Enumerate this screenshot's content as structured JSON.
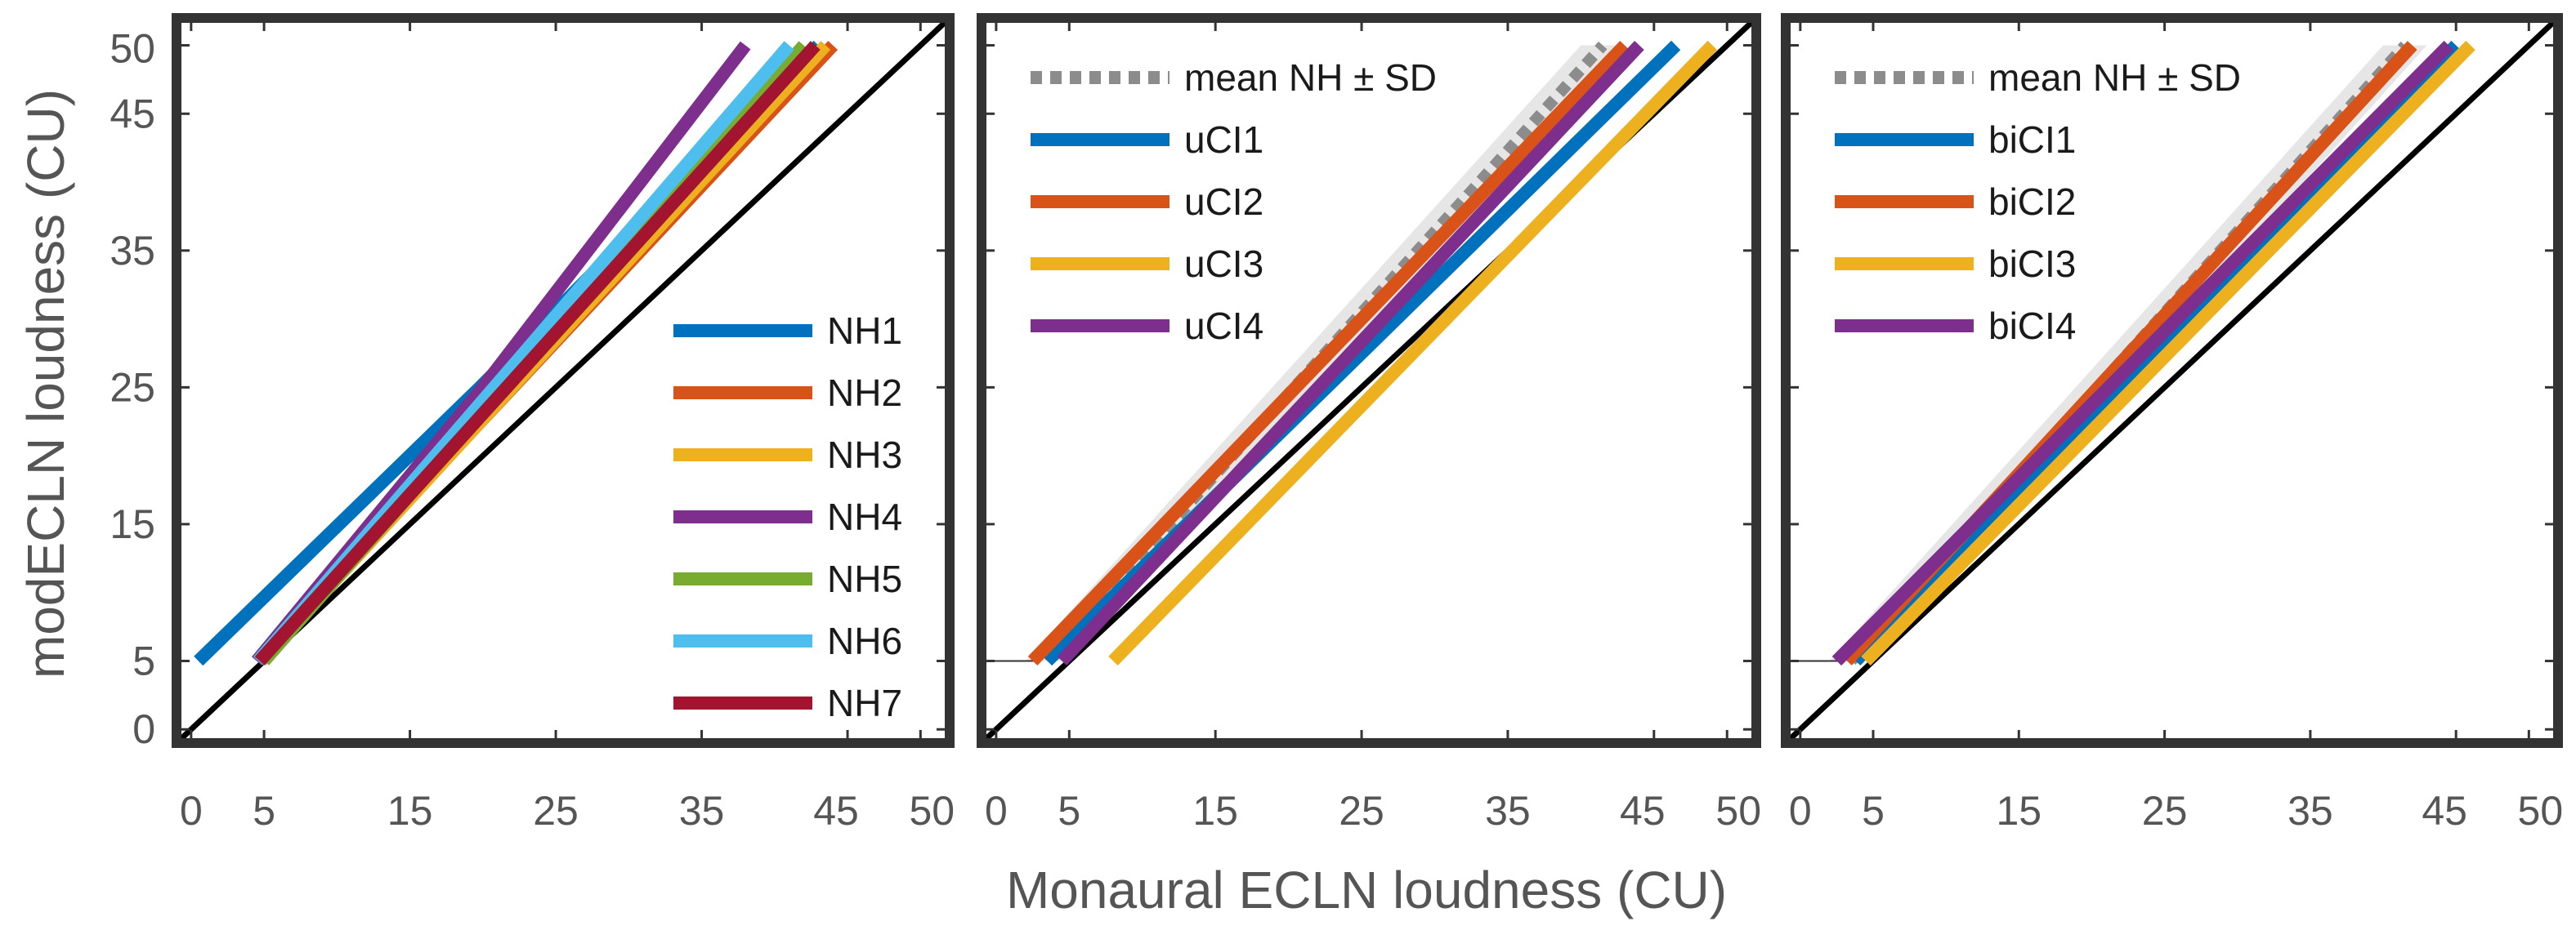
{
  "figure": {
    "xlabel": "Monaural ECLN loudness (CU)",
    "ylabel": "modECLN loudness (CU)"
  },
  "chart_data": [
    {
      "type": "line",
      "panel": "left",
      "xlim": [
        -1,
        52
      ],
      "ylim": [
        -1,
        52
      ],
      "xticks": [
        0,
        5,
        15,
        25,
        35,
        45,
        50
      ],
      "xtick_labels": [
        "0",
        "5",
        "15",
        "25",
        "35",
        "45",
        "50"
      ],
      "yticks": [
        0,
        5,
        15,
        25,
        35,
        45,
        50
      ],
      "ytick_labels": [
        "0",
        "5",
        "15",
        "25",
        "35",
        "45",
        "50"
      ],
      "identity_line": true,
      "legend_position": "lower-right",
      "series": [
        {
          "name": "NH1",
          "color": "#0072BD",
          "x": [
            0.5,
            19.8,
            43
          ],
          "y": [
            5,
            25,
            50
          ]
        },
        {
          "name": "NH2",
          "color": "#D95319",
          "x": [
            4.5,
            44
          ],
          "y": [
            5,
            50
          ]
        },
        {
          "name": "NH3",
          "color": "#EDB120",
          "x": [
            4.8,
            43.5
          ],
          "y": [
            5,
            50
          ]
        },
        {
          "name": "NH4",
          "color": "#7E2F8E",
          "x": [
            4.5,
            20,
            38
          ],
          "y": [
            5,
            25,
            50
          ]
        },
        {
          "name": "NH5",
          "color": "#77AC30",
          "x": [
            5,
            42
          ],
          "y": [
            5,
            50
          ]
        },
        {
          "name": "NH6",
          "color": "#4DBEEE",
          "x": [
            4.6,
            41
          ],
          "y": [
            5,
            50
          ]
        },
        {
          "name": "NH7",
          "color": "#A2142F",
          "x": [
            4.7,
            42.8
          ],
          "y": [
            5,
            50
          ]
        }
      ]
    },
    {
      "type": "line",
      "panel": "middle",
      "xlim": [
        -1,
        52
      ],
      "ylim": [
        -1,
        52
      ],
      "xticks": [
        0,
        5,
        15,
        25,
        35,
        45,
        50
      ],
      "xtick_labels": [
        "0",
        "5",
        "15",
        "25",
        "35",
        "45",
        "50"
      ],
      "identity_line": true,
      "legend_position": "upper-left",
      "mean_nh": {
        "name": "mean NH ± SD",
        "x": [
          3.5,
          41.5
        ],
        "y": [
          5,
          50
        ],
        "sd": 1.5
      },
      "series": [
        {
          "name": "uCI1",
          "color": "#0072BD",
          "x": [
            3.5,
            46.5
          ],
          "y": [
            5,
            50
          ]
        },
        {
          "name": "uCI2",
          "color": "#D95319",
          "x": [
            2.5,
            43
          ],
          "y": [
            5,
            50
          ]
        },
        {
          "name": "uCI3",
          "color": "#EDB120",
          "x": [
            8,
            49
          ],
          "y": [
            5,
            50
          ]
        },
        {
          "name": "uCI4",
          "color": "#7E2F8E",
          "x": [
            4.5,
            44
          ],
          "y": [
            5,
            50
          ]
        }
      ]
    },
    {
      "type": "line",
      "panel": "right",
      "xlim": [
        -1,
        52
      ],
      "ylim": [
        -1,
        52
      ],
      "xticks": [
        0,
        5,
        15,
        25,
        35,
        45,
        50
      ],
      "xtick_labels": [
        "0",
        "5",
        "15",
        "25",
        "35",
        "45",
        "50"
      ],
      "identity_line": true,
      "legend_position": "upper-left",
      "mean_nh": {
        "name": "mean NH ± SD",
        "x": [
          3.5,
          41.5
        ],
        "y": [
          5,
          50
        ],
        "sd": 1.5
      },
      "series": [
        {
          "name": "biCI1",
          "color": "#0072BD",
          "x": [
            3.8,
            45
          ],
          "y": [
            5,
            50
          ]
        },
        {
          "name": "biCI2",
          "color": "#D95319",
          "x": [
            3.2,
            42
          ],
          "y": [
            5,
            50
          ]
        },
        {
          "name": "biCI3",
          "color": "#EDB120",
          "x": [
            4.5,
            46
          ],
          "y": [
            5,
            50
          ]
        },
        {
          "name": "biCI4",
          "color": "#7E2F8E",
          "x": [
            2.5,
            44.5
          ],
          "y": [
            5,
            50
          ]
        }
      ]
    }
  ]
}
